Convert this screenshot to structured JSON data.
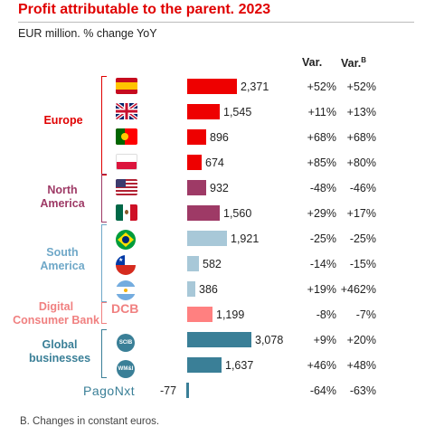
{
  "title": "Profit attributable to the parent. 2023",
  "subtitle": "EUR million. % change YoY",
  "headers": {
    "var": "Var.",
    "var_b": "Var.",
    "var_b_sup": "B"
  },
  "groups": [
    {
      "name": "Europe",
      "color": "#e00000"
    },
    {
      "name": "North America",
      "color": "#9e3a66"
    },
    {
      "name": "South America",
      "color": "#6fa8c8"
    },
    {
      "name": "Digital Consumer Bank",
      "color": "#f08080"
    },
    {
      "name": "Global businesses",
      "color": "#3a7f97"
    }
  ],
  "icons": {
    "dcb": "DCB",
    "pagonxt": "PagoNxt",
    "scib": "SCIB",
    "wm": "WM&I"
  },
  "chart_data": {
    "type": "bar",
    "orientation": "horizontal",
    "title": "Profit attributable to the parent. 2023",
    "unit": "EUR million",
    "rows": [
      {
        "group": "Europe",
        "icon": "spain-flag-icon",
        "value": 2371,
        "label": "2,371",
        "var": "+52%",
        "var_b": "+52%",
        "color": "#ee0000"
      },
      {
        "group": "Europe",
        "icon": "uk-flag-icon",
        "value": 1545,
        "label": "1,545",
        "var": "+11%",
        "var_b": "+13%",
        "color": "#ee0000"
      },
      {
        "group": "Europe",
        "icon": "portugal-flag-icon",
        "value": 896,
        "label": "896",
        "var": "+68%",
        "var_b": "+68%",
        "color": "#ee0000"
      },
      {
        "group": "Europe",
        "icon": "poland-flag-icon",
        "value": 674,
        "label": "674",
        "var": "+85%",
        "var_b": "+80%",
        "color": "#ee0000"
      },
      {
        "group": "North America",
        "icon": "usa-flag-icon",
        "value": 932,
        "label": "932",
        "var": "-48%",
        "var_b": "-46%",
        "color": "#9e3a66"
      },
      {
        "group": "North America",
        "icon": "mexico-flag-icon",
        "value": 1560,
        "label": "1,560",
        "var": "+29%",
        "var_b": "+17%",
        "color": "#9e3a66"
      },
      {
        "group": "South America",
        "icon": "brazil-flag-icon",
        "value": 1921,
        "label": "1,921",
        "var": "-25%",
        "var_b": "-25%",
        "color": "#a8c8d8"
      },
      {
        "group": "South America",
        "icon": "chile-flag-icon",
        "value": 582,
        "label": "582",
        "var": "-14%",
        "var_b": "-15%",
        "color": "#a8c8d8"
      },
      {
        "group": "South America",
        "icon": "argentina-flag-icon",
        "value": 386,
        "label": "386",
        "var": "+19%",
        "var_b": "+462%",
        "color": "#a8c8d8"
      },
      {
        "group": "Digital Consumer Bank",
        "icon": "dcb-logo-icon",
        "value": 1199,
        "label": "1,199",
        "var": "-8%",
        "var_b": "-7%",
        "color": "#ff8080"
      },
      {
        "group": "Global businesses",
        "icon": "scib-logo-icon",
        "value": 3078,
        "label": "3,078",
        "var": "+9%",
        "var_b": "+20%",
        "color": "#3a7f97"
      },
      {
        "group": "Global businesses",
        "icon": "wmi-logo-icon",
        "value": 1637,
        "label": "1,637",
        "var": "+46%",
        "var_b": "+48%",
        "color": "#3a7f97"
      },
      {
        "group": "PagoNxt",
        "icon": "pagonxt-logo-icon",
        "value": -77,
        "label": "-77",
        "var": "-64%",
        "var_b": "-63%",
        "color": "#3a7f97"
      }
    ]
  },
  "footnote": "B.  Changes in constant euros."
}
